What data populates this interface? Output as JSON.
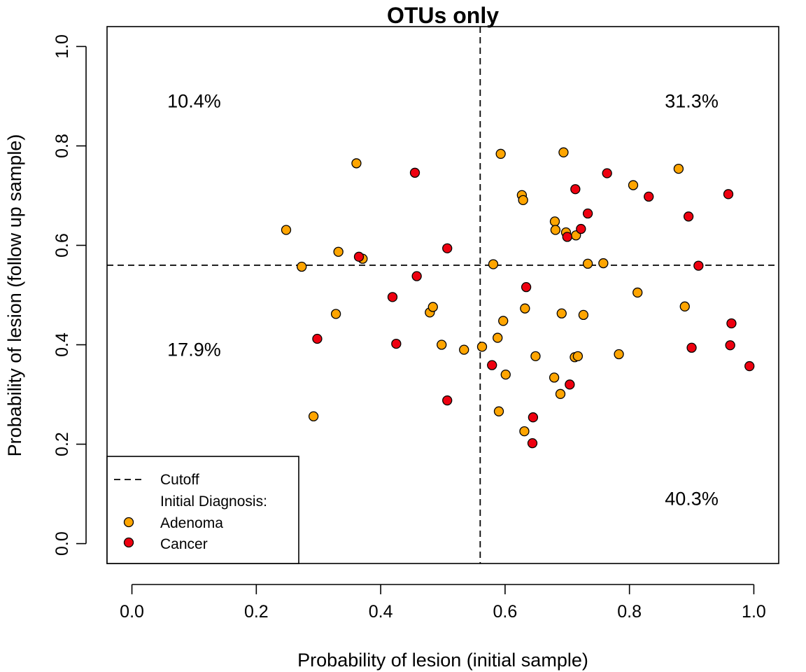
{
  "chart_data": {
    "type": "scatter",
    "title": "OTUs only",
    "xlabel": "Probability of lesion (initial sample)",
    "ylabel": "Probability of lesion (follow up sample)",
    "xlim": [
      -0.04,
      1.04
    ],
    "ylim": [
      -0.04,
      1.04
    ],
    "x_ticks": [
      "0.0",
      "0.2",
      "0.4",
      "0.6",
      "0.8",
      "1.0"
    ],
    "y_ticks": [
      "0.0",
      "0.2",
      "0.4",
      "0.6",
      "0.8",
      "1.0"
    ],
    "cutoff": 0.56,
    "grid": false,
    "annotations": [
      {
        "text": "10.4%",
        "x": 0.1,
        "y": 0.89
      },
      {
        "text": "31.3%",
        "x": 0.9,
        "y": 0.89
      },
      {
        "text": "17.9%",
        "x": 0.1,
        "y": 0.39
      },
      {
        "text": "40.3%",
        "x": 0.9,
        "y": 0.09
      }
    ],
    "legend": {
      "placement": "bottom-left",
      "cutoff_label": "Cutoff",
      "header": "Initial Diagnosis:",
      "entries": [
        "Adenoma",
        "Cancer"
      ]
    },
    "series": [
      {
        "name": "Adenoma",
        "color": "#FFA500",
        "points": [
          [
            0.248,
            0.631
          ],
          [
            0.273,
            0.557
          ],
          [
            0.292,
            0.256
          ],
          [
            0.328,
            0.462
          ],
          [
            0.332,
            0.587
          ],
          [
            0.361,
            0.765
          ],
          [
            0.371,
            0.573
          ],
          [
            0.479,
            0.465
          ],
          [
            0.484,
            0.476
          ],
          [
            0.498,
            0.4
          ],
          [
            0.534,
            0.39
          ],
          [
            0.563,
            0.396
          ],
          [
            0.581,
            0.562
          ],
          [
            0.588,
            0.414
          ],
          [
            0.59,
            0.266
          ],
          [
            0.593,
            0.784
          ],
          [
            0.597,
            0.448
          ],
          [
            0.601,
            0.34
          ],
          [
            0.627,
            0.701
          ],
          [
            0.629,
            0.691
          ],
          [
            0.631,
            0.226
          ],
          [
            0.632,
            0.473
          ],
          [
            0.649,
            0.377
          ],
          [
            0.679,
            0.334
          ],
          [
            0.68,
            0.648
          ],
          [
            0.681,
            0.631
          ],
          [
            0.689,
            0.301
          ],
          [
            0.691,
            0.463
          ],
          [
            0.694,
            0.787
          ],
          [
            0.698,
            0.626
          ],
          [
            0.712,
            0.375
          ],
          [
            0.714,
            0.62
          ],
          [
            0.717,
            0.377
          ],
          [
            0.726,
            0.46
          ],
          [
            0.733,
            0.563
          ],
          [
            0.758,
            0.564
          ],
          [
            0.783,
            0.381
          ],
          [
            0.806,
            0.721
          ],
          [
            0.813,
            0.505
          ],
          [
            0.879,
            0.754
          ],
          [
            0.889,
            0.477
          ]
        ]
      },
      {
        "name": "Cancer",
        "color": "#EE0010",
        "points": [
          [
            0.298,
            0.412
          ],
          [
            0.365,
            0.577
          ],
          [
            0.419,
            0.496
          ],
          [
            0.425,
            0.402
          ],
          [
            0.455,
            0.746
          ],
          [
            0.458,
            0.538
          ],
          [
            0.507,
            0.594
          ],
          [
            0.507,
            0.288
          ],
          [
            0.579,
            0.359
          ],
          [
            0.634,
            0.516
          ],
          [
            0.644,
            0.202
          ],
          [
            0.645,
            0.254
          ],
          [
            0.7,
            0.617
          ],
          [
            0.704,
            0.32
          ],
          [
            0.713,
            0.713
          ],
          [
            0.722,
            0.633
          ],
          [
            0.733,
            0.664
          ],
          [
            0.764,
            0.745
          ],
          [
            0.831,
            0.698
          ],
          [
            0.895,
            0.658
          ],
          [
            0.9,
            0.394
          ],
          [
            0.911,
            0.559
          ],
          [
            0.959,
            0.703
          ],
          [
            0.962,
            0.399
          ],
          [
            0.964,
            0.443
          ],
          [
            0.993,
            0.357
          ]
        ]
      }
    ]
  }
}
